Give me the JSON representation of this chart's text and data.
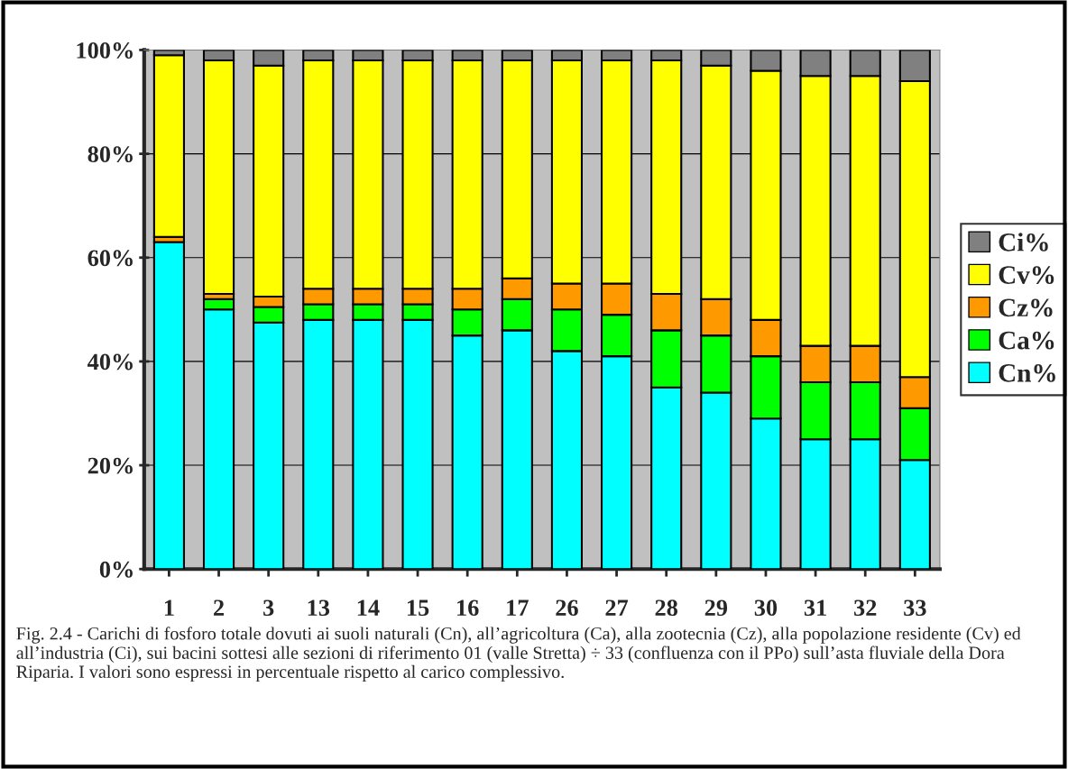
{
  "chart_data": {
    "type": "bar",
    "stacked": true,
    "categories": [
      "1",
      "2",
      "3",
      "13",
      "14",
      "15",
      "16",
      "17",
      "26",
      "27",
      "28",
      "29",
      "30",
      "31",
      "32",
      "33"
    ],
    "series": [
      {
        "name": "Cn%",
        "color": "#00ffff",
        "values": [
          63,
          50,
          47.5,
          48,
          48,
          48,
          45,
          46,
          42,
          41,
          35,
          34,
          29,
          25,
          25,
          21
        ]
      },
      {
        "name": "Ca%",
        "color": "#00ff00",
        "values": [
          null,
          2,
          3,
          3,
          3,
          3,
          5,
          6,
          8,
          8,
          11,
          11,
          12,
          11,
          11,
          10
        ]
      },
      {
        "name": "Cz%",
        "color": "#ff9900",
        "values": [
          1,
          1,
          2,
          3,
          3,
          3,
          4,
          4,
          5,
          6,
          7,
          7,
          7,
          7,
          7,
          6
        ]
      },
      {
        "name": "Cv%",
        "color": "#ffff00",
        "values": [
          35,
          45,
          44.5,
          44,
          44,
          44,
          44,
          42,
          43,
          43,
          45,
          45,
          48,
          52,
          52,
          57
        ]
      },
      {
        "name": "Ci%",
        "color": "#808080",
        "values": [
          1,
          2,
          3,
          2,
          2,
          2,
          2,
          2,
          2,
          2,
          2,
          3,
          4,
          5,
          5,
          6
        ]
      }
    ],
    "ylim": [
      0,
      100
    ],
    "yticks": [
      {
        "value": 0,
        "label": "0%"
      },
      {
        "value": 20,
        "label": "20%"
      },
      {
        "value": 40,
        "label": "40%"
      },
      {
        "value": 60,
        "label": "60%"
      },
      {
        "value": 80,
        "label": "80%"
      },
      {
        "value": 100,
        "label": "100%"
      }
    ],
    "grid": "y",
    "legend": "right",
    "annotations": [
      "Fig. 2.4 - Carichi di fosforo totale dovuti ai suoli naturali (Cn), all’agricoltura (Ca), alla zootecnia (Cz), alla popolazione residente (Cv) ed all’industria (Ci), sui bacini sottesi alle sezioni di riferimento 01 (valle Stretta) ÷ 33 (confluenza con il PPo) sull’asta fluviale della Dora Riparia. I valori sono espressi in percentuale rispetto al carico complessivo."
    ]
  }
}
